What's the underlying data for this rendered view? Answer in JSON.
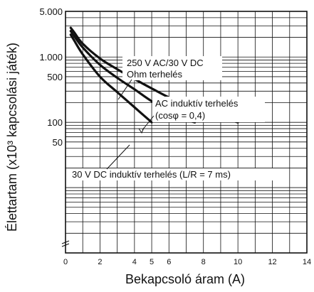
{
  "chart_data": {
    "type": "line",
    "xlabel": "Bekapcsoló áram (A)",
    "ylabel": "Élettartam (x10³ kapcsolási játék)",
    "xlim": [
      0,
      14
    ],
    "ylim_log": [
      1,
      5000
    ],
    "y_scale": "log",
    "grid": true,
    "x_ticks": [
      "0",
      "2",
      "4",
      "5",
      "6",
      "8",
      "10",
      "12",
      "14"
    ],
    "x_tick_values": [
      0,
      2,
      4,
      5,
      6,
      8,
      10,
      12,
      14
    ],
    "y_ticks": [
      "5.000",
      "1.000",
      "500",
      "100",
      "50"
    ],
    "y_tick_values": [
      5000,
      1000,
      500,
      100,
      50
    ],
    "series": [
      {
        "name": "250 V AC/30 V DC Ohm terhelés",
        "x": [
          0.3,
          0.5,
          1,
          2,
          3,
          4,
          5,
          6,
          7,
          8,
          9,
          10
        ],
        "y": [
          2800,
          2400,
          1600,
          950,
          650,
          460,
          330,
          240,
          180,
          145,
          120,
          100
        ]
      },
      {
        "name": "AC induktív terhelés (cosφ = 0,4)",
        "x": [
          0.3,
          0.5,
          1,
          2,
          3,
          4,
          5,
          6,
          7,
          7.5
        ],
        "y": [
          2500,
          2100,
          1400,
          760,
          480,
          320,
          210,
          150,
          110,
          100
        ]
      },
      {
        "name": "30 V DC induktív terhelés (L/R = 7 ms)",
        "x": [
          0.3,
          0.5,
          1,
          2,
          3,
          4,
          5
        ],
        "y": [
          2200,
          1800,
          1100,
          500,
          290,
          170,
          100
        ]
      }
    ],
    "annotations": [
      {
        "id": "a1",
        "lines": [
          "250 V AC/30 V DC",
          "Ohm terhelés"
        ]
      },
      {
        "id": "a2",
        "lines": [
          "AC induktív terhelés",
          "(cosφ = 0,4)"
        ]
      },
      {
        "id": "a3",
        "lines": [
          "30 V DC induktív terhelés (L/R = 7 ms)"
        ]
      }
    ]
  }
}
